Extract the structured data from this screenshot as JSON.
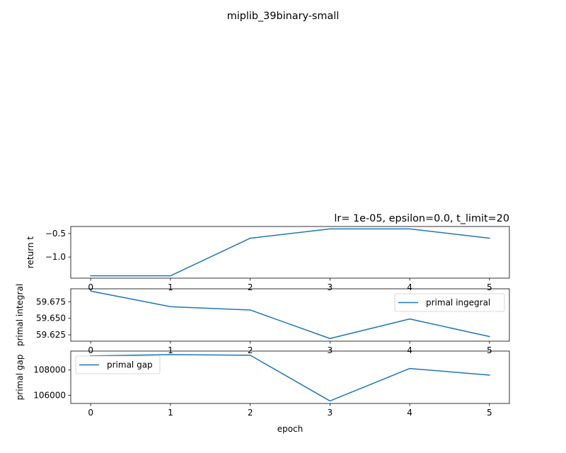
{
  "figure": {
    "suptitle": "miplib_39binary-small",
    "xlabel": "epoch"
  },
  "chart_data": [
    {
      "type": "line",
      "title": "lr= 1e-05, epsilon=0.0, t_limit=20",
      "ylabel": "return t",
      "x": [
        0,
        1,
        2,
        3,
        4,
        5
      ],
      "xticks": [
        "0",
        "1",
        "2",
        "3",
        "4",
        "5"
      ],
      "xlim": [
        -0.25,
        5.25
      ],
      "ylim": [
        -1.45,
        -0.35
      ],
      "yticks": [
        -1.0,
        -0.5
      ],
      "ytick_labels": [
        "−1.0",
        "−0.5"
      ],
      "series": [
        {
          "values": [
            -1.4,
            -1.4,
            -0.6,
            -0.4,
            -0.4,
            -0.6
          ],
          "color": "#1f77b4"
        }
      ],
      "legend": null
    },
    {
      "type": "line",
      "ylabel": "primal integral",
      "x": [
        0,
        1,
        2,
        3,
        4,
        5
      ],
      "xticks": [
        "0",
        "1",
        "2",
        "3",
        "4",
        "5"
      ],
      "xlim": [
        -0.25,
        5.25
      ],
      "ylim": [
        59.6155,
        59.6945
      ],
      "yticks": [
        59.625,
        59.65,
        59.675
      ],
      "ytick_labels": [
        "59.625",
        "59.650",
        "59.675"
      ],
      "series": [
        {
          "name": "primal ingegral",
          "values": [
            59.691,
            59.6675,
            59.6625,
            59.6195,
            59.649,
            59.6225
          ],
          "color": "#1f77b4"
        }
      ],
      "legend": "upper right"
    },
    {
      "type": "line",
      "ylabel": "primal gap",
      "x": [
        0,
        1,
        2,
        3,
        4,
        5
      ],
      "xticks": [
        "0",
        "1",
        "2",
        "3",
        "4",
        "5"
      ],
      "xlim": [
        -0.25,
        5.25
      ],
      "ylim": [
        105350,
        109500
      ],
      "yticks": [
        106000,
        108000
      ],
      "ytick_labels": [
        "106000",
        "108000"
      ],
      "series": [
        {
          "name": "primal gap",
          "values": [
            109120,
            109220,
            109170,
            105550,
            108120,
            107600
          ],
          "color": "#1f77b4"
        }
      ],
      "legend": "upper left"
    }
  ]
}
